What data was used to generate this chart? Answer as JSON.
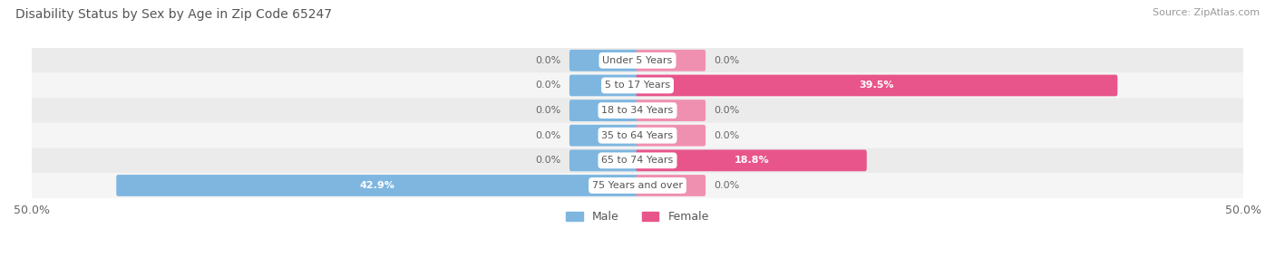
{
  "title": "Disability Status by Sex by Age in Zip Code 65247",
  "source": "Source: ZipAtlas.com",
  "categories": [
    "Under 5 Years",
    "5 to 17 Years",
    "18 to 34 Years",
    "35 to 64 Years",
    "65 to 74 Years",
    "75 Years and over"
  ],
  "male_values": [
    0.0,
    0.0,
    0.0,
    0.0,
    0.0,
    42.9
  ],
  "female_values": [
    0.0,
    39.5,
    0.0,
    0.0,
    18.8,
    0.0
  ],
  "male_color": "#7EB6E0",
  "female_color": "#F090B0",
  "female_color_bright": "#E8558A",
  "row_bg_colors": [
    "#EBEBEB",
    "#F5F5F5"
  ],
  "xlim": 50.0,
  "stub_size": 5.5,
  "title_fontsize": 10,
  "source_fontsize": 8,
  "label_fontsize": 8,
  "category_fontsize": 8,
  "legend_fontsize": 9,
  "axis_label_fontsize": 9
}
